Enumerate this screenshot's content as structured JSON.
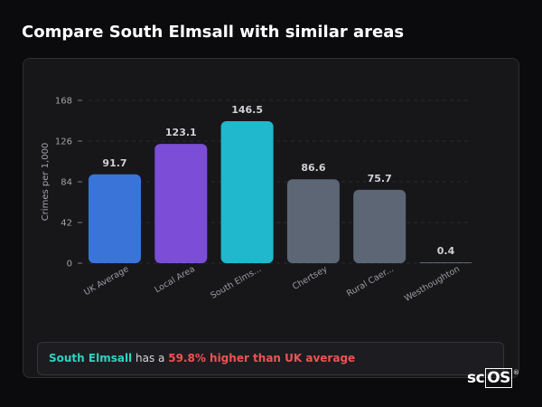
{
  "page": {
    "title": "Compare South Elmsall with similar areas"
  },
  "summary": {
    "area": "South Elmsall",
    "connector": "has a",
    "difference": "59.8% higher than UK average"
  },
  "logo": {
    "text_a": "sc",
    "text_b": "OS",
    "mark": "®"
  },
  "colors": {
    "uk_average": "#3a74d9",
    "local_area": "#7c4dd6",
    "south_elmsall": "#1fb8cc",
    "other": "#5c6675",
    "positive_text": "#2dd4bf",
    "negative_text": "#f05252"
  },
  "chart_data": {
    "type": "bar",
    "ylabel": "Crimes per 1,000",
    "xlabel": "",
    "ylim": [
      0,
      168
    ],
    "yticks": [
      0,
      42,
      84,
      126,
      168
    ],
    "grid": true,
    "categories": [
      "UK Average",
      "Local Area",
      "South Elms...",
      "Chertsey",
      "Rural Caer...",
      "Westhoughton"
    ],
    "values": [
      91.7,
      123.1,
      146.5,
      86.6,
      75.7,
      0.4
    ],
    "value_labels": [
      "91.7",
      "123.1",
      "146.5",
      "86.6",
      "75.7",
      "0.4"
    ],
    "bar_colors": [
      "#3a74d9",
      "#7c4dd6",
      "#1fb8cc",
      "#5c6675",
      "#5c6675",
      "#5c6675"
    ]
  }
}
